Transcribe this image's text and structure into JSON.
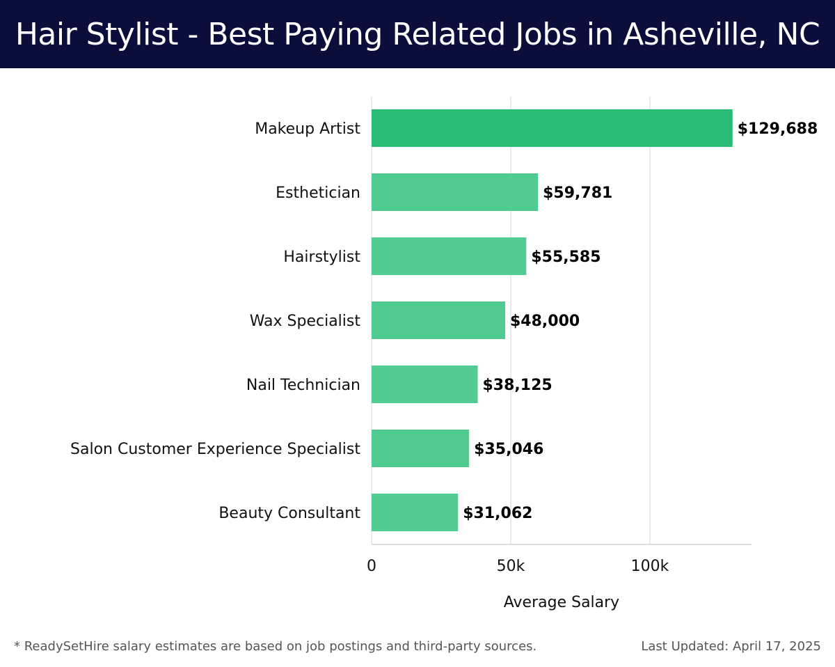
{
  "header": {
    "title": "Hair Stylist - Best Paying Related Jobs in Asheville, NC"
  },
  "footer": {
    "note": "* ReadySetHire salary estimates are based on job postings and third-party sources.",
    "updated": "Last Updated: April 17, 2025"
  },
  "colors": {
    "header_bg": "#0b0d3a",
    "bar_top": "#2bbd77",
    "bar": "#52cb92",
    "grid": "#dddddd"
  },
  "chart_data": {
    "type": "bar",
    "orientation": "horizontal",
    "title": "Hair Stylist - Best Paying Related Jobs in Asheville, NC",
    "xlabel": "Average Salary",
    "ylabel": "",
    "categories": [
      "Makeup Artist",
      "Esthetician",
      "Hairstylist",
      "Wax Specialist",
      "Nail Technician",
      "Salon Customer Experience Specialist",
      "Beauty Consultant"
    ],
    "values": [
      129688,
      59781,
      55585,
      48000,
      38125,
      35046,
      31062
    ],
    "value_labels": [
      "$129,688",
      "$59,781",
      "$55,585",
      "$48,000",
      "$38,125",
      "$35,046",
      "$31,062"
    ],
    "xlim": [
      0,
      136500
    ],
    "xticks": [
      0,
      50000,
      100000
    ],
    "xtick_labels": [
      "0",
      "50k",
      "100k"
    ],
    "grid": true
  }
}
